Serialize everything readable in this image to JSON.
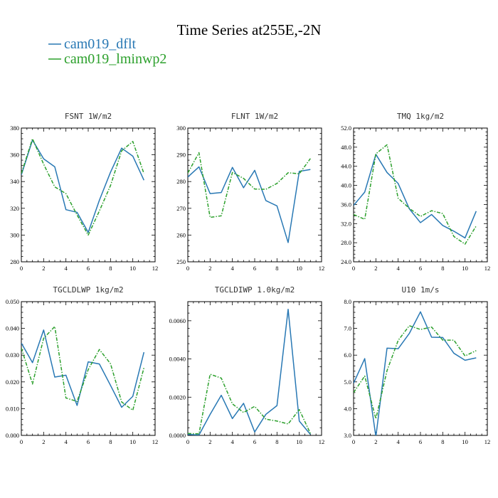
{
  "title": "Time Series at255E,-2N",
  "legend": [
    {
      "label": "cam019_dflt",
      "color": "#2878b4"
    },
    {
      "label": "cam019_lminwp2",
      "color": "#2ca02c"
    }
  ],
  "chart_data": [
    {
      "type": "line",
      "title": "FSNT   1W/m2",
      "xlim": [
        0,
        12
      ],
      "ylim": [
        280,
        380
      ],
      "x_ticks": [
        0,
        2,
        4,
        6,
        8,
        10,
        12
      ],
      "y_ticks": [
        280,
        300,
        320,
        340,
        360,
        380
      ],
      "y_tick_labels": [
        "280",
        "300",
        "320",
        "340",
        "360",
        "380"
      ],
      "x": [
        0,
        1,
        2,
        3,
        4,
        5,
        6,
        7,
        8,
        9,
        10,
        11
      ],
      "series": [
        {
          "name": "cam019_dflt",
          "values": [
            345,
            371,
            357,
            351,
            319,
            317,
            302,
            326,
            347,
            365,
            359,
            341
          ]
        },
        {
          "name": "cam019_lminwp2",
          "values": [
            346,
            372,
            353,
            336,
            331,
            315,
            300,
            318,
            337,
            363,
            370,
            346
          ]
        }
      ]
    },
    {
      "type": "line",
      "title": "FLNT   1W/m2",
      "xlim": [
        0,
        12
      ],
      "ylim": [
        250,
        300
      ],
      "x_ticks": [
        0,
        2,
        4,
        6,
        8,
        10,
        12
      ],
      "y_ticks": [
        250,
        260,
        270,
        280,
        290,
        300
      ],
      "y_tick_labels": [
        "250",
        "260",
        "270",
        "280",
        "290",
        "300"
      ],
      "x": [
        0,
        1,
        2,
        3,
        4,
        5,
        6,
        7,
        8,
        9,
        10,
        11
      ],
      "series": [
        {
          "name": "cam019_dflt",
          "values": [
            281.7,
            285.5,
            275.5,
            275.9,
            285.3,
            277.7,
            284.2,
            272.9,
            270.9,
            257.2,
            283.8,
            284.5
          ]
        },
        {
          "name": "cam019_lminwp2",
          "values": [
            283.2,
            290.8,
            266.6,
            267.2,
            283.4,
            281.2,
            277.2,
            277.1,
            279.3,
            283.3,
            282.9,
            288.6
          ]
        }
      ]
    },
    {
      "type": "line",
      "title": "TMQ   1kg/m2",
      "xlim": [
        0,
        12
      ],
      "ylim": [
        24,
        52
      ],
      "x_ticks": [
        0,
        2,
        4,
        6,
        8,
        10,
        12
      ],
      "y_ticks": [
        24,
        28,
        32,
        36,
        40,
        44,
        48,
        52
      ],
      "y_tick_labels": [
        "24.0",
        "28.0",
        "32.0",
        "36.0",
        "40.0",
        "44.0",
        "48.0",
        "52.0"
      ],
      "x": [
        0,
        1,
        2,
        3,
        4,
        5,
        6,
        7,
        8,
        9,
        10,
        11
      ],
      "series": [
        {
          "name": "cam019_dflt",
          "values": [
            35.8,
            38.6,
            46.5,
            42.7,
            40.4,
            35.1,
            32.2,
            33.9,
            31.6,
            30.4,
            29.0,
            34.6
          ]
        },
        {
          "name": "cam019_lminwp2",
          "values": [
            33.9,
            32.9,
            46.6,
            48.5,
            37.3,
            35.2,
            33.5,
            34.7,
            34.1,
            29.3,
            27.7,
            31.5
          ]
        }
      ]
    },
    {
      "type": "line",
      "title": "TGCLDLWP   1kg/m2",
      "xlim": [
        0,
        12
      ],
      "ylim": [
        0,
        0.05
      ],
      "x_ticks": [
        0,
        2,
        4,
        6,
        8,
        10,
        12
      ],
      "y_ticks": [
        0,
        0.01,
        0.02,
        0.03,
        0.04,
        0.05
      ],
      "y_tick_labels": [
        "0.000",
        "0.010",
        "0.020",
        "0.030",
        "0.040",
        "0.050"
      ],
      "x": [
        0,
        1,
        2,
        3,
        4,
        5,
        6,
        7,
        8,
        9,
        10,
        11
      ],
      "series": [
        {
          "name": "cam019_dflt",
          "values": [
            0.0345,
            0.0272,
            0.0394,
            0.0218,
            0.0225,
            0.0112,
            0.0275,
            0.0267,
            0.0187,
            0.0105,
            0.0146,
            0.0311
          ]
        },
        {
          "name": "cam019_lminwp2",
          "values": [
            0.0327,
            0.0192,
            0.0363,
            0.0407,
            0.014,
            0.0127,
            0.0246,
            0.0321,
            0.0268,
            0.0125,
            0.0094,
            0.0253
          ]
        }
      ]
    },
    {
      "type": "line",
      "title": "TGCLDIWP   1.0kg/m2",
      "xlim": [
        0,
        12
      ],
      "ylim": [
        0,
        0.007
      ],
      "x_ticks": [
        0,
        2,
        4,
        6,
        8,
        10,
        12
      ],
      "y_ticks": [
        0,
        0.002,
        0.004,
        0.006
      ],
      "y_tick_labels": [
        "0.0000",
        "0.0020",
        "0.0040",
        "0.0060"
      ],
      "x": [
        0,
        1,
        2,
        3,
        4,
        5,
        6,
        7,
        8,
        9,
        10,
        11
      ],
      "series": [
        {
          "name": "cam019_dflt",
          "values": [
            5e-05,
            2e-05,
            0.0011,
            0.0021,
            0.00088,
            0.00168,
            0.00018,
            0.0011,
            0.00156,
            0.0066,
            0.00075,
            5e-05
          ]
        },
        {
          "name": "cam019_lminwp2",
          "values": [
            0.0001,
            8e-05,
            0.0032,
            0.003,
            0.00165,
            0.0012,
            0.00152,
            0.00085,
            0.00075,
            0.0006,
            0.00135,
            0.0001
          ]
        }
      ]
    },
    {
      "type": "line",
      "title": "U10   1m/s",
      "xlim": [
        0,
        12
      ],
      "ylim": [
        3,
        8
      ],
      "x_ticks": [
        0,
        2,
        4,
        6,
        8,
        10,
        12
      ],
      "y_ticks": [
        3,
        4,
        5,
        6,
        7,
        8
      ],
      "y_tick_labels": [
        "3.0",
        "4.0",
        "5.0",
        "6.0",
        "7.0",
        "8.0"
      ],
      "x": [
        0,
        1,
        2,
        3,
        4,
        5,
        6,
        7,
        8,
        9,
        10,
        11
      ],
      "series": [
        {
          "name": "cam019_dflt",
          "values": [
            4.95,
            5.87,
            2.95,
            6.26,
            6.24,
            6.81,
            7.62,
            6.67,
            6.66,
            6.07,
            5.81,
            5.9
          ]
        },
        {
          "name": "cam019_lminwp2",
          "values": [
            4.6,
            5.22,
            3.62,
            5.42,
            6.55,
            7.1,
            6.96,
            7.05,
            6.56,
            6.56,
            5.97,
            6.17
          ]
        }
      ]
    }
  ]
}
